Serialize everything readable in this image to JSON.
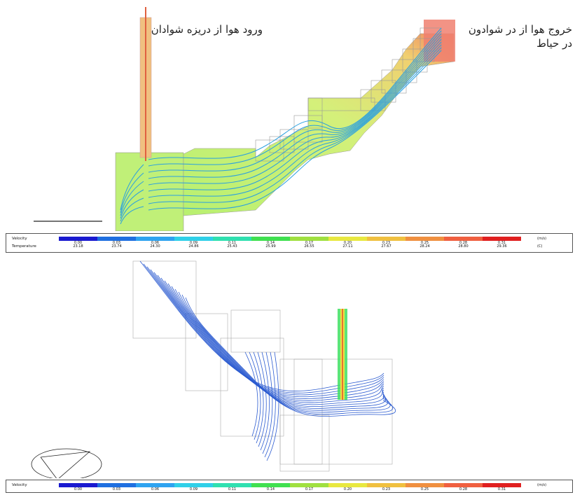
{
  "annotations": {
    "inlet": "ورود هوا از دریزه شوادان",
    "outlet": "خروج هوا از در شوادون در حیاط"
  },
  "legend_top": {
    "velocity_label": "Velocity",
    "temperature_label": "Temperature",
    "velocity_unit": "(m/s)",
    "temperature_unit": "(C)",
    "velocity_ticks": [
      "0.00",
      "0.03",
      "0.06",
      "0.09",
      "0.11",
      "0.14",
      "0.17",
      "0.20",
      "0.23",
      "0.25",
      "0.28",
      "0.31"
    ],
    "temperature_ticks": [
      "23.18",
      "23.74",
      "24.30",
      "24.86",
      "25.43",
      "25.99",
      "26.55",
      "27.11",
      "27.67",
      "28.24",
      "28.80",
      "29.36"
    ]
  },
  "legend_bottom": {
    "velocity_label": "Velocity",
    "velocity_unit": "(m/s)",
    "velocity_ticks": [
      "0.00",
      "0.03",
      "0.06",
      "0.09",
      "0.11",
      "0.14",
      "0.17",
      "0.20",
      "0.23",
      "0.25",
      "0.28",
      "0.31"
    ]
  },
  "colors": {
    "scale": [
      "#1a1ad0",
      "#1f6fe0",
      "#2ea3f0",
      "#30d0e8",
      "#30e0b0",
      "#40e050",
      "#a0e040",
      "#e8e840",
      "#f0c040",
      "#f09040",
      "#f06040",
      "#e02020"
    ],
    "room_fill": "#c8f080",
    "vector": "#2aa0e0"
  }
}
